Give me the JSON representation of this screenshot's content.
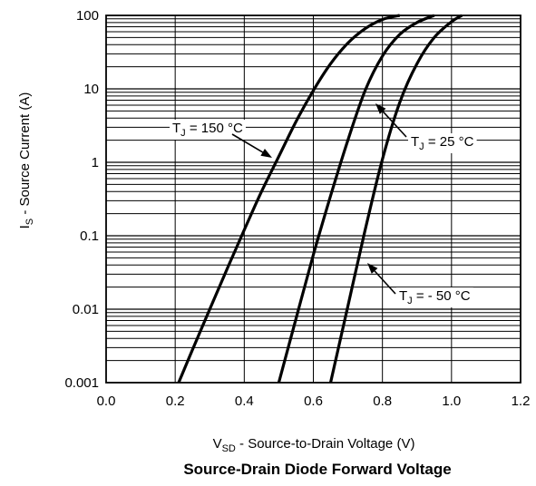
{
  "chart_data": {
    "type": "line",
    "title": "Source-Drain Diode Forward Voltage",
    "xlabel": {
      "main": "V",
      "sub": "SD",
      "rest": " - Source-to-Drain Voltage (V)"
    },
    "ylabel": {
      "main": "I",
      "sub": "S",
      "rest": " - Source Current (A)"
    },
    "x_scale": "linear",
    "y_scale": "log",
    "xlim": [
      0.0,
      1.2
    ],
    "ylim": [
      0.001,
      100
    ],
    "grid": true,
    "x_ticks": [
      "0.0",
      "0.2",
      "0.4",
      "0.6",
      "0.8",
      "1.0",
      "1.2"
    ],
    "y_ticks": [
      "0.001",
      "0.01",
      "0.1",
      "1",
      "10",
      "100"
    ],
    "series": [
      {
        "name": "TJ = 150 °C",
        "label": {
          "main": "T",
          "sub": "J",
          "rest": " = 150 °C"
        },
        "x": [
          0.21,
          0.25,
          0.3,
          0.35,
          0.4,
          0.45,
          0.5,
          0.55,
          0.6,
          0.65,
          0.7,
          0.75,
          0.8,
          0.85
        ],
        "y": [
          0.001,
          0.0028,
          0.01,
          0.035,
          0.12,
          0.4,
          1.2,
          3.6,
          9.5,
          22,
          42,
          66,
          88,
          100
        ]
      },
      {
        "name": "TJ = 25 °C",
        "label": {
          "main": "T",
          "sub": "J",
          "rest": " = 25 °C"
        },
        "x": [
          0.5,
          0.55,
          0.6,
          0.65,
          0.7,
          0.75,
          0.8,
          0.85,
          0.9,
          0.95
        ],
        "y": [
          0.001,
          0.0075,
          0.055,
          0.35,
          2.0,
          9.5,
          28,
          55,
          80,
          100
        ]
      },
      {
        "name": "TJ = - 50 °C",
        "label": {
          "main": "T",
          "sub": "J",
          "rest": " = - 50 °C"
        },
        "x": [
          0.65,
          0.7,
          0.75,
          0.8,
          0.85,
          0.9,
          0.95,
          1.0,
          1.03
        ],
        "y": [
          0.001,
          0.011,
          0.12,
          1.1,
          6.5,
          22,
          50,
          82,
          100
        ]
      }
    ]
  }
}
